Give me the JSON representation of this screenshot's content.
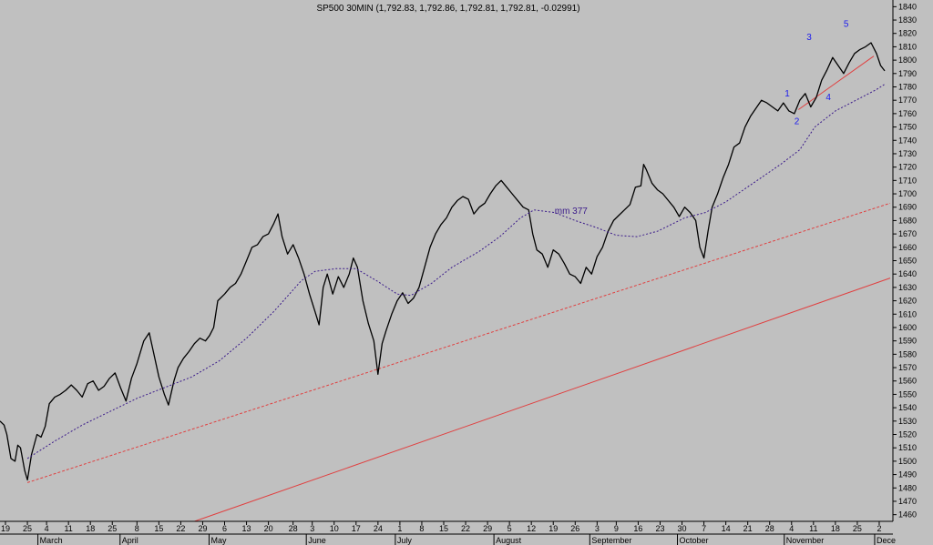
{
  "chart_data": {
    "type": "line",
    "title": "SP500 30MIN (1,792.83, 1,792.86, 1,792.81, 1,792.81, -0.02991)",
    "xlabel": "",
    "ylabel": "",
    "ylim": [
      1455,
      1845
    ],
    "y_ticks": [
      1460,
      1470,
      1480,
      1490,
      1500,
      1510,
      1520,
      1530,
      1540,
      1550,
      1560,
      1570,
      1580,
      1590,
      1600,
      1610,
      1620,
      1630,
      1640,
      1650,
      1660,
      1670,
      1680,
      1690,
      1700,
      1710,
      1720,
      1730,
      1740,
      1750,
      1760,
      1770,
      1780,
      1790,
      1800,
      1810,
      1820,
      1830,
      1840
    ],
    "grid": false,
    "axis_side": "right",
    "x_day_ticks": [
      {
        "label": "19",
        "x": 0.4
      },
      {
        "label": "25",
        "x": 2.0
      },
      {
        "label": "4",
        "x": 3.4
      },
      {
        "label": "11",
        "x": 5.0
      },
      {
        "label": "18",
        "x": 6.6
      },
      {
        "label": "25",
        "x": 8.2
      },
      {
        "label": "8",
        "x": 10.0
      },
      {
        "label": "15",
        "x": 11.6
      },
      {
        "label": "22",
        "x": 13.2
      },
      {
        "label": "29",
        "x": 14.8
      },
      {
        "label": "6",
        "x": 16.4
      },
      {
        "label": "13",
        "x": 18.0
      },
      {
        "label": "20",
        "x": 19.6
      },
      {
        "label": "28",
        "x": 21.4
      },
      {
        "label": "3",
        "x": 22.8
      },
      {
        "label": "10",
        "x": 24.4
      },
      {
        "label": "17",
        "x": 26.0
      },
      {
        "label": "24",
        "x": 27.6
      },
      {
        "label": "1",
        "x": 29.2
      },
      {
        "label": "8",
        "x": 30.8
      },
      {
        "label": "15",
        "x": 32.4
      },
      {
        "label": "22",
        "x": 34.0
      },
      {
        "label": "29",
        "x": 35.6
      },
      {
        "label": "5",
        "x": 37.2
      },
      {
        "label": "12",
        "x": 38.8
      },
      {
        "label": "19",
        "x": 40.4
      },
      {
        "label": "26",
        "x": 42.0
      },
      {
        "label": "3",
        "x": 43.6
      },
      {
        "label": "9",
        "x": 45.0
      },
      {
        "label": "16",
        "x": 46.6
      },
      {
        "label": "23",
        "x": 48.2
      },
      {
        "label": "30",
        "x": 49.8
      },
      {
        "label": "7",
        "x": 51.4
      },
      {
        "label": "14",
        "x": 53.0
      },
      {
        "label": "21",
        "x": 54.6
      },
      {
        "label": "28",
        "x": 56.2
      },
      {
        "label": "4",
        "x": 57.8
      },
      {
        "label": "11",
        "x": 59.4
      },
      {
        "label": "18",
        "x": 61.0
      },
      {
        "label": "25",
        "x": 62.6
      },
      {
        "label": "2",
        "x": 64.2
      }
    ],
    "x_months": [
      {
        "label": "March",
        "x": 2.9
      },
      {
        "label": "April",
        "x": 8.9
      },
      {
        "label": "May",
        "x": 15.4
      },
      {
        "label": "June",
        "x": 22.5
      },
      {
        "label": "July",
        "x": 29.0
      },
      {
        "label": "August",
        "x": 36.2
      },
      {
        "label": "September",
        "x": 43.2
      },
      {
        "label": "October",
        "x": 49.6
      },
      {
        "label": "November",
        "x": 57.4
      },
      {
        "label": "Dece",
        "x": 64.0
      }
    ],
    "series": [
      {
        "name": "",
        "style": "price",
        "color": "#000000",
        "points": [
          [
            0.0,
            1530
          ],
          [
            0.3,
            1527
          ],
          [
            0.5,
            1520
          ],
          [
            0.8,
            1502
          ],
          [
            1.1,
            1500
          ],
          [
            1.3,
            1512
          ],
          [
            1.5,
            1510
          ],
          [
            1.8,
            1493
          ],
          [
            2.0,
            1486
          ],
          [
            2.3,
            1505
          ],
          [
            2.7,
            1520
          ],
          [
            3.0,
            1518
          ],
          [
            3.3,
            1526
          ],
          [
            3.6,
            1543
          ],
          [
            4.0,
            1548
          ],
          [
            4.4,
            1550
          ],
          [
            4.8,
            1553
          ],
          [
            5.2,
            1557
          ],
          [
            5.6,
            1553
          ],
          [
            6.0,
            1548
          ],
          [
            6.4,
            1558
          ],
          [
            6.8,
            1560
          ],
          [
            7.2,
            1553
          ],
          [
            7.6,
            1556
          ],
          [
            8.0,
            1562
          ],
          [
            8.4,
            1566
          ],
          [
            8.8,
            1555
          ],
          [
            9.2,
            1545
          ],
          [
            9.6,
            1562
          ],
          [
            10.0,
            1573
          ],
          [
            10.5,
            1590
          ],
          [
            10.9,
            1596
          ],
          [
            11.2,
            1582
          ],
          [
            11.6,
            1563
          ],
          [
            12.0,
            1550
          ],
          [
            12.3,
            1542
          ],
          [
            12.7,
            1560
          ],
          [
            13.0,
            1570
          ],
          [
            13.4,
            1577
          ],
          [
            13.8,
            1582
          ],
          [
            14.2,
            1588
          ],
          [
            14.6,
            1592
          ],
          [
            15.0,
            1590
          ],
          [
            15.3,
            1594
          ],
          [
            15.6,
            1600
          ],
          [
            15.9,
            1620
          ],
          [
            16.4,
            1625
          ],
          [
            16.8,
            1630
          ],
          [
            17.2,
            1633
          ],
          [
            17.6,
            1640
          ],
          [
            18.0,
            1650
          ],
          [
            18.4,
            1660
          ],
          [
            18.8,
            1662
          ],
          [
            19.2,
            1668
          ],
          [
            19.6,
            1670
          ],
          [
            20.0,
            1678
          ],
          [
            20.3,
            1685
          ],
          [
            20.6,
            1668
          ],
          [
            21.0,
            1655
          ],
          [
            21.4,
            1662
          ],
          [
            21.8,
            1652
          ],
          [
            22.2,
            1640
          ],
          [
            22.6,
            1625
          ],
          [
            23.0,
            1612
          ],
          [
            23.3,
            1602
          ],
          [
            23.6,
            1630
          ],
          [
            23.9,
            1640
          ],
          [
            24.3,
            1625
          ],
          [
            24.7,
            1638
          ],
          [
            25.1,
            1630
          ],
          [
            25.5,
            1640
          ],
          [
            25.8,
            1652
          ],
          [
            26.1,
            1645
          ],
          [
            26.5,
            1620
          ],
          [
            26.9,
            1603
          ],
          [
            27.3,
            1590
          ],
          [
            27.6,
            1565
          ],
          [
            27.9,
            1588
          ],
          [
            28.2,
            1598
          ],
          [
            28.6,
            1610
          ],
          [
            29.0,
            1620
          ],
          [
            29.4,
            1626
          ],
          [
            29.8,
            1618
          ],
          [
            30.2,
            1622
          ],
          [
            30.6,
            1630
          ],
          [
            31.0,
            1645
          ],
          [
            31.4,
            1660
          ],
          [
            31.8,
            1670
          ],
          [
            32.2,
            1677
          ],
          [
            32.6,
            1682
          ],
          [
            33.0,
            1690
          ],
          [
            33.4,
            1695
          ],
          [
            33.8,
            1698
          ],
          [
            34.2,
            1696
          ],
          [
            34.6,
            1685
          ],
          [
            35.0,
            1690
          ],
          [
            35.4,
            1693
          ],
          [
            35.8,
            1700
          ],
          [
            36.2,
            1706
          ],
          [
            36.6,
            1710
          ],
          [
            37.0,
            1705
          ],
          [
            37.4,
            1700
          ],
          [
            37.8,
            1695
          ],
          [
            38.2,
            1690
          ],
          [
            38.6,
            1688
          ],
          [
            38.9,
            1670
          ],
          [
            39.2,
            1658
          ],
          [
            39.6,
            1655
          ],
          [
            40.0,
            1645
          ],
          [
            40.4,
            1658
          ],
          [
            40.8,
            1655
          ],
          [
            41.2,
            1648
          ],
          [
            41.6,
            1640
          ],
          [
            42.0,
            1638
          ],
          [
            42.4,
            1633
          ],
          [
            42.8,
            1645
          ],
          [
            43.2,
            1640
          ],
          [
            43.6,
            1653
          ],
          [
            44.0,
            1660
          ],
          [
            44.4,
            1672
          ],
          [
            44.8,
            1680
          ],
          [
            45.2,
            1684
          ],
          [
            45.6,
            1688
          ],
          [
            46.0,
            1692
          ],
          [
            46.4,
            1705
          ],
          [
            46.8,
            1706
          ],
          [
            47.0,
            1722
          ],
          [
            47.2,
            1718
          ],
          [
            47.6,
            1708
          ],
          [
            48.0,
            1703
          ],
          [
            48.4,
            1700
          ],
          [
            48.8,
            1695
          ],
          [
            49.2,
            1690
          ],
          [
            49.6,
            1683
          ],
          [
            50.0,
            1690
          ],
          [
            50.4,
            1686
          ],
          [
            50.8,
            1680
          ],
          [
            51.1,
            1660
          ],
          [
            51.4,
            1652
          ],
          [
            51.7,
            1672
          ],
          [
            52.0,
            1690
          ],
          [
            52.4,
            1700
          ],
          [
            52.8,
            1712
          ],
          [
            53.2,
            1722
          ],
          [
            53.6,
            1735
          ],
          [
            54.0,
            1738
          ],
          [
            54.4,
            1750
          ],
          [
            54.8,
            1758
          ],
          [
            55.2,
            1764
          ],
          [
            55.6,
            1770
          ],
          [
            56.0,
            1768
          ],
          [
            56.4,
            1765
          ],
          [
            56.8,
            1762
          ],
          [
            57.2,
            1768
          ],
          [
            57.6,
            1762
          ],
          [
            58.0,
            1760
          ],
          [
            58.4,
            1770
          ],
          [
            58.8,
            1775
          ],
          [
            59.2,
            1765
          ],
          [
            59.6,
            1772
          ],
          [
            60.0,
            1785
          ],
          [
            60.4,
            1793
          ],
          [
            60.8,
            1802
          ],
          [
            61.2,
            1796
          ],
          [
            61.6,
            1790
          ],
          [
            62.0,
            1798
          ],
          [
            62.4,
            1805
          ],
          [
            62.8,
            1808
          ],
          [
            63.2,
            1810
          ],
          [
            63.6,
            1813
          ],
          [
            64.0,
            1805
          ],
          [
            64.3,
            1796
          ],
          [
            64.6,
            1792
          ]
        ]
      },
      {
        "name": "mm 377",
        "style": "dotted",
        "color": "#3a1a8a",
        "points": [
          [
            2.0,
            1502
          ],
          [
            4.0,
            1515
          ],
          [
            6.0,
            1527
          ],
          [
            8.0,
            1537
          ],
          [
            10.0,
            1547
          ],
          [
            12.0,
            1555
          ],
          [
            14.0,
            1563
          ],
          [
            16.0,
            1575
          ],
          [
            18.0,
            1592
          ],
          [
            20.0,
            1612
          ],
          [
            22.0,
            1635
          ],
          [
            23.0,
            1642
          ],
          [
            24.5,
            1644
          ],
          [
            26.0,
            1644
          ],
          [
            27.5,
            1635
          ],
          [
            29.0,
            1625
          ],
          [
            30.0,
            1624
          ],
          [
            31.5,
            1633
          ],
          [
            33.0,
            1645
          ],
          [
            35.0,
            1657
          ],
          [
            36.5,
            1668
          ],
          [
            38.0,
            1682
          ],
          [
            39.0,
            1688
          ],
          [
            40.5,
            1686
          ],
          [
            42.0,
            1680
          ],
          [
            43.5,
            1675
          ],
          [
            45.0,
            1669
          ],
          [
            46.5,
            1668
          ],
          [
            48.0,
            1672
          ],
          [
            50.0,
            1682
          ],
          [
            51.5,
            1686
          ],
          [
            53.0,
            1694
          ],
          [
            55.0,
            1708
          ],
          [
            57.0,
            1722
          ],
          [
            58.4,
            1733
          ],
          [
            59.5,
            1750
          ],
          [
            61.0,
            1762
          ],
          [
            62.5,
            1770
          ],
          [
            64.0,
            1778
          ],
          [
            64.6,
            1782
          ]
        ]
      }
    ],
    "trendlines": [
      {
        "style": "dashed",
        "color": "#e04040",
        "from": [
          2.0,
          1484
        ],
        "to": [
          65.0,
          1693
        ]
      },
      {
        "style": "solid",
        "color": "#e04040",
        "from": [
          14.2,
          1455
        ],
        "to": [
          65.0,
          1637
        ]
      },
      {
        "style": "solid",
        "color": "#e04040",
        "from": [
          58.3,
          1763
        ],
        "to": [
          63.8,
          1803
        ]
      }
    ],
    "annotations": [
      {
        "text": "mm 377",
        "x": 40.5,
        "y": 1685,
        "color": "#3a1a8a"
      },
      {
        "text": "1",
        "x": 57.3,
        "y": 1773,
        "color": "#1a1aee"
      },
      {
        "text": "2",
        "x": 58.0,
        "y": 1752,
        "color": "#1a1aee"
      },
      {
        "text": "3",
        "x": 58.9,
        "y": 1815,
        "color": "#1a1aee"
      },
      {
        "text": "4",
        "x": 60.3,
        "y": 1770,
        "color": "#1a1aee"
      },
      {
        "text": "5",
        "x": 61.6,
        "y": 1825,
        "color": "#1a1aee"
      }
    ]
  }
}
